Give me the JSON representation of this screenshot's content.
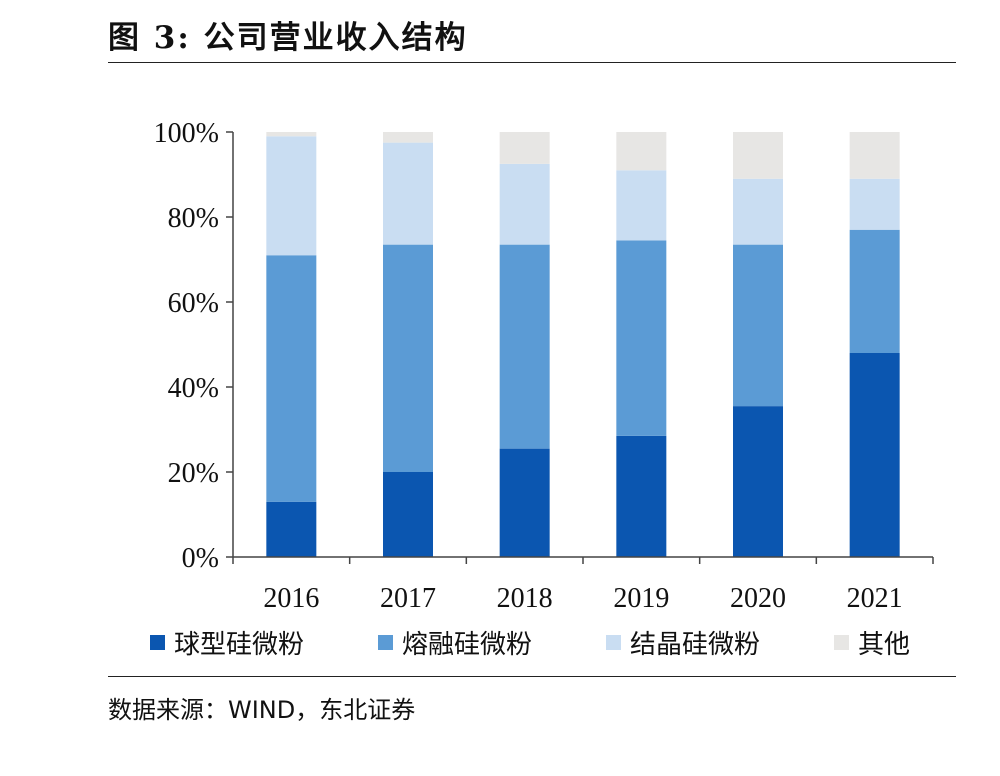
{
  "figure": {
    "title": "图 3: 公司营业收入结构",
    "source": "数据来源：WIND，东北证券"
  },
  "chart_data": {
    "type": "bar",
    "stacked": true,
    "categories": [
      "2016",
      "2017",
      "2018",
      "2019",
      "2020",
      "2021"
    ],
    "y_ticks": [
      "0%",
      "20%",
      "40%",
      "60%",
      "80%",
      "100%"
    ],
    "ylim": [
      0,
      100
    ],
    "legend_position": "bottom",
    "series": [
      {
        "name": "球型硅微粉",
        "color": "#0B56B0",
        "values": [
          13,
          20,
          25.5,
          28.5,
          35.5,
          48
        ]
      },
      {
        "name": "熔融硅微粉",
        "color": "#5B9BD5",
        "values": [
          58,
          53.5,
          48,
          46,
          38,
          29
        ]
      },
      {
        "name": "结晶硅微粉",
        "color": "#C9DDF2",
        "values": [
          28,
          24,
          19,
          16.5,
          15.5,
          12
        ]
      },
      {
        "name": "其他",
        "color": "#E7E6E4",
        "values": [
          1,
          2.5,
          7.5,
          9,
          11,
          11
        ]
      }
    ],
    "grid": false
  }
}
